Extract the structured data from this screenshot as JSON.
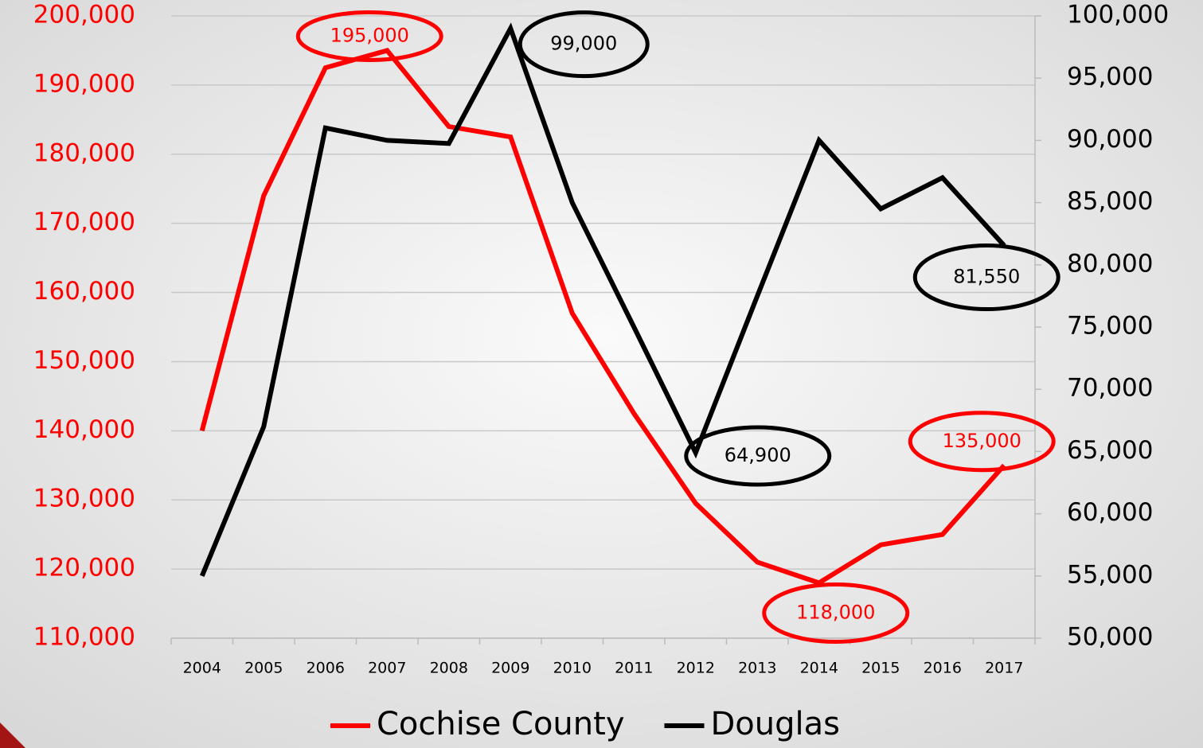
{
  "chart_data": {
    "type": "line",
    "categories": [
      "2004",
      "2005",
      "2006",
      "2007",
      "2008",
      "2009",
      "2010",
      "2011",
      "2012",
      "2013",
      "2014",
      "2015",
      "2016",
      "2017"
    ],
    "series": [
      {
        "name": "Cochise County",
        "color": "#ff0000",
        "axis": "y",
        "values": [
          140000,
          174000,
          192500,
          195000,
          184000,
          182500,
          157000,
          142500,
          129500,
          121000,
          118000,
          123500,
          125000,
          135000
        ],
        "value_labels": [
          null,
          null,
          null,
          "195,000",
          null,
          null,
          null,
          null,
          null,
          null,
          "118,000",
          null,
          null,
          "135,000"
        ]
      },
      {
        "name": "Douglas",
        "color": "#000000",
        "axis": "y2",
        "values": [
          55000,
          67000,
          91000,
          90000,
          89750,
          99000,
          85000,
          75000,
          64900,
          77500,
          90000,
          84500,
          87000,
          81550
        ],
        "value_labels": [
          null,
          null,
          null,
          null,
          null,
          "99,000",
          null,
          null,
          "64,900",
          null,
          null,
          null,
          null,
          "81,550"
        ]
      }
    ],
    "ylim": [
      110000,
      200000
    ],
    "yticks": [
      {
        "value": 110000,
        "label": "110,000"
      },
      {
        "value": 120000,
        "label": "120,000"
      },
      {
        "value": 130000,
        "label": "130,000"
      },
      {
        "value": 140000,
        "label": "140,000"
      },
      {
        "value": 150000,
        "label": "150,000"
      },
      {
        "value": 160000,
        "label": "160,000"
      },
      {
        "value": 170000,
        "label": "170,000"
      },
      {
        "value": 180000,
        "label": "180,000"
      },
      {
        "value": 190000,
        "label": "190,000"
      },
      {
        "value": 200000,
        "label": "200,000"
      }
    ],
    "y2lim": [
      50000,
      100000
    ],
    "y2ticks": [
      {
        "value": 50000,
        "label": "50,000"
      },
      {
        "value": 55000,
        "label": "55,000"
      },
      {
        "value": 60000,
        "label": "60,000"
      },
      {
        "value": 65000,
        "label": "65,000"
      },
      {
        "value": 70000,
        "label": "70,000"
      },
      {
        "value": 75000,
        "label": "75,000"
      },
      {
        "value": 80000,
        "label": "80,000"
      },
      {
        "value": 85000,
        "label": "85,000"
      },
      {
        "value": 90000,
        "label": "90,000"
      },
      {
        "value": 95000,
        "label": "95,000"
      },
      {
        "value": 100000,
        "label": "100,000"
      }
    ],
    "grid": true,
    "legend": "bottom"
  }
}
